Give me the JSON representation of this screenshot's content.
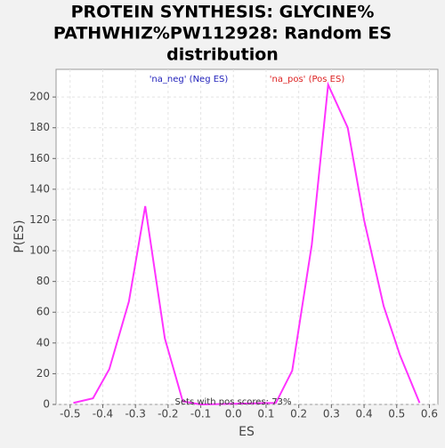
{
  "chart_data": {
    "type": "line",
    "title": [
      "PROTEIN SYNTHESIS: GLYCINE%",
      "PATHWHIZ%PW112928: Random ES",
      "distribution"
    ],
    "x_label": "ES",
    "y_label": "P(ES)",
    "legend": [
      {
        "name": "'na_neg' (Neg ES)",
        "color": "#2222bb"
      },
      {
        "name": "'na_pos' (Pos ES)",
        "color": "#dd2222"
      }
    ],
    "annotation": "Sets with pos scores: 73%",
    "grid": true,
    "xlim": [
      -0.543,
      0.626
    ],
    "ylim": [
      0,
      218
    ],
    "xticks": [
      -0.5,
      -0.4,
      -0.3,
      -0.2,
      -0.1,
      {
        "value": 0,
        "label": "0.0"
      },
      0.1,
      0.2,
      0.3,
      0.4,
      0.5,
      0.6
    ],
    "yticks": [
      0,
      20,
      40,
      60,
      80,
      100,
      120,
      140,
      160,
      180,
      200
    ],
    "series": [
      {
        "name": "P(ES)",
        "color": "#ff33ff",
        "x": [
          -0.49,
          -0.43,
          -0.38,
          -0.32,
          -0.27,
          -0.21,
          -0.155,
          -0.1,
          0.13,
          0.18,
          0.24,
          0.29,
          0.35,
          0.4,
          0.46,
          0.51,
          0.57
        ],
        "values": [
          1,
          4,
          23,
          67,
          129,
          43,
          2,
          0,
          1,
          22,
          104,
          208,
          180,
          120,
          64,
          32,
          1
        ]
      }
    ]
  }
}
